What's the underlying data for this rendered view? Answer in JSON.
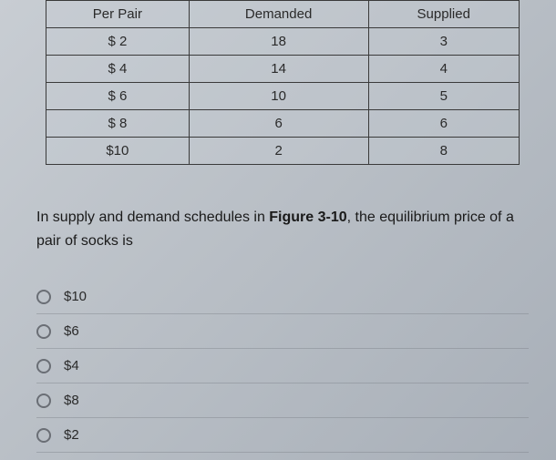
{
  "table": {
    "columns": [
      "Per Pair",
      "Demanded",
      "Supplied"
    ],
    "rows": [
      [
        "$ 2",
        "18",
        "3"
      ],
      [
        "$ 4",
        "14",
        "4"
      ],
      [
        "$ 6",
        "10",
        "5"
      ],
      [
        "$ 8",
        "6",
        "6"
      ],
      [
        "$10",
        "2",
        "8"
      ]
    ],
    "border_color": "#3a3a3a",
    "cell_fontsize": 15
  },
  "question": {
    "prefix": "In supply and demand schedules in ",
    "bold": "Figure 3-10",
    "suffix": ", the equilibrium price of a pair of socks is"
  },
  "options": [
    {
      "label": "$10"
    },
    {
      "label": "$6"
    },
    {
      "label": "$4"
    },
    {
      "label": "$8"
    },
    {
      "label": "$2"
    }
  ],
  "colors": {
    "background_start": "#c8cdd3",
    "background_end": "#a8afb8",
    "text": "#2a2a2a",
    "radio_border": "#6a6e75",
    "option_divider": "#787d84"
  }
}
